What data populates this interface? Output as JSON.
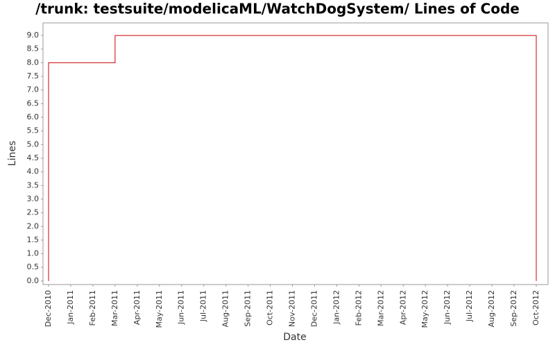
{
  "chart_data": {
    "type": "line",
    "title": "/trunk: testsuite/modelicaML/WatchDogSystem/ Lines of Code",
    "xlabel": "Date",
    "ylabel": "Lines",
    "x": [
      "2010-12",
      "2010-12",
      "2011-03",
      "2011-03",
      "2012-10",
      "2012-10"
    ],
    "series": [
      {
        "name": "Lines",
        "color": "#cc0000",
        "values": [
          0,
          8,
          8,
          9,
          9,
          0
        ]
      }
    ],
    "xticks": [
      {
        "value": "2010-12",
        "label": "Dec-2010"
      },
      {
        "value": "2011-01",
        "label": "Jan-2011"
      },
      {
        "value": "2011-02",
        "label": "Feb-2011"
      },
      {
        "value": "2011-03",
        "label": "Mar-2011"
      },
      {
        "value": "2011-04",
        "label": "Apr-2011"
      },
      {
        "value": "2011-05",
        "label": "May-2011"
      },
      {
        "value": "2011-06",
        "label": "Jun-2011"
      },
      {
        "value": "2011-07",
        "label": "Jul-2011"
      },
      {
        "value": "2011-08",
        "label": "Aug-2011"
      },
      {
        "value": "2011-09",
        "label": "Sep-2011"
      },
      {
        "value": "2011-10",
        "label": "Oct-2011"
      },
      {
        "value": "2011-11",
        "label": "Nov-2011"
      },
      {
        "value": "2011-12",
        "label": "Dec-2011"
      },
      {
        "value": "2012-01",
        "label": "Jan-2012"
      },
      {
        "value": "2012-02",
        "label": "Feb-2012"
      },
      {
        "value": "2012-03",
        "label": "Mar-2012"
      },
      {
        "value": "2012-04",
        "label": "Apr-2012"
      },
      {
        "value": "2012-05",
        "label": "May-2012"
      },
      {
        "value": "2012-06",
        "label": "Jun-2012"
      },
      {
        "value": "2012-07",
        "label": "Jul-2012"
      },
      {
        "value": "2012-08",
        "label": "Aug-2012"
      },
      {
        "value": "2012-09",
        "label": "Sep-2012"
      },
      {
        "value": "2012-10",
        "label": "Oct-2012"
      }
    ],
    "ylim": [
      -0.13,
      9.46
    ],
    "yticks": [
      {
        "value": 0,
        "label": "0.0"
      },
      0.5,
      {
        "value": 1,
        "label": "1.0"
      },
      1.5,
      {
        "value": 2,
        "label": "2.0"
      },
      2.5,
      {
        "value": 3,
        "label": "3.0"
      },
      3.5,
      {
        "value": 4,
        "label": "4.0"
      },
      4.5,
      {
        "value": 5,
        "label": "5.0"
      },
      5.5,
      {
        "value": 6,
        "label": "6.0"
      },
      6.5,
      {
        "value": 7,
        "label": "7.0"
      },
      7.5,
      {
        "value": 8,
        "label": "8.0"
      },
      8.5,
      {
        "value": 9,
        "label": "9.0"
      }
    ],
    "grid": false
  }
}
